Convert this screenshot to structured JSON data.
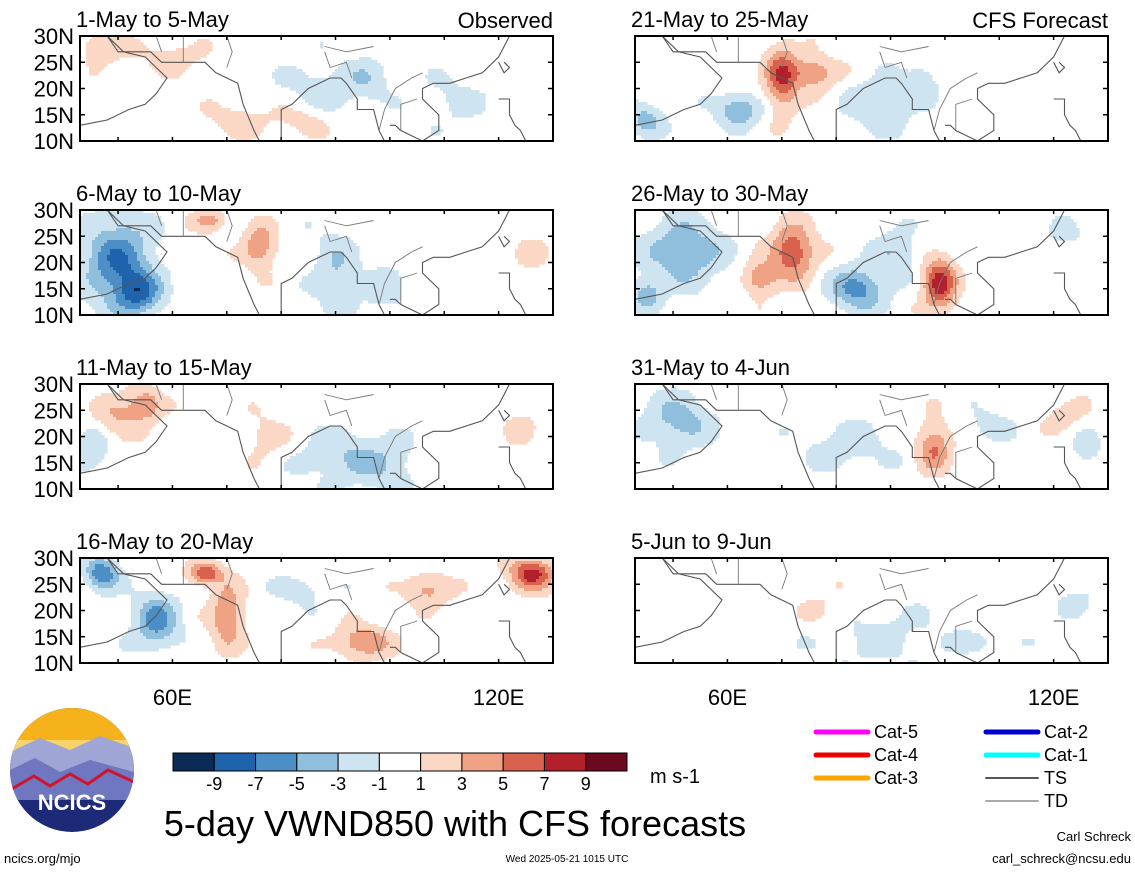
{
  "title": "5-day VWND850 with CFS forecasts",
  "source_link": "ncics.org/mjo",
  "timestamp": "Wed 2025-05-21 1015 UTC",
  "author_name": "Carl Schreck",
  "author_email": "carl_schreck@ncsu.edu",
  "logo_text": "NCICS",
  "units": "m s-1",
  "observed_label": "Observed",
  "forecast_label": "CFS Forecast",
  "chart_data": {
    "type": "heatmap",
    "variable": "VWND850",
    "lat_ticks": [
      "30N",
      "25N",
      "20N",
      "15N",
      "10N"
    ],
    "lat_range": [
      10,
      30
    ],
    "lon_ticks": [
      "60E",
      "120E"
    ],
    "lon_range": [
      43,
      130
    ],
    "panels_left": [
      {
        "period": "1-May to 5-May",
        "kind": "observed"
      },
      {
        "period": "6-May to 10-May",
        "kind": "observed"
      },
      {
        "period": "11-May to 15-May",
        "kind": "observed"
      },
      {
        "period": "16-May to 20-May",
        "kind": "observed"
      }
    ],
    "panels_right": [
      {
        "period": "21-May to 25-May",
        "kind": "forecast"
      },
      {
        "period": "26-May to 30-May",
        "kind": "forecast"
      },
      {
        "period": "31-May to 4-Jun",
        "kind": "forecast"
      },
      {
        "period": "5-Jun to 9-Jun",
        "kind": "forecast"
      }
    ],
    "colorbar": {
      "labels": [
        "-9",
        "-7",
        "-5",
        "-3",
        "-1",
        "1",
        "3",
        "5",
        "7",
        "9"
      ],
      "colors": [
        "#0b2a55",
        "#1f63ad",
        "#4b8fc6",
        "#8fbfdd",
        "#cfe4f1",
        "#ffffff",
        "#fbd8c6",
        "#f0a285",
        "#d9624f",
        "#b2202c",
        "#6b0a1e"
      ]
    },
    "legend": [
      {
        "label": "Cat-5",
        "color": "#ff00ff"
      },
      {
        "label": "Cat-4",
        "color": "#ee0000"
      },
      {
        "label": "Cat-3",
        "color": "#ffa500"
      },
      {
        "label": "Cat-2",
        "color": "#0000cc"
      },
      {
        "label": "Cat-1",
        "color": "#00ffff"
      },
      {
        "label": "TS",
        "color": "#555555"
      },
      {
        "label": "TD",
        "color": "#aaaaaa"
      }
    ]
  }
}
